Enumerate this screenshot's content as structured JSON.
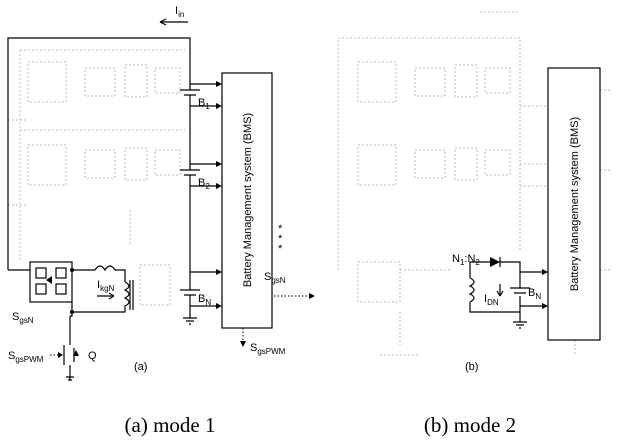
{
  "panel_a": {
    "current_in": {
      "main": "I",
      "sub": "in"
    },
    "batteries": [
      {
        "main": "B",
        "sub": "1"
      },
      {
        "main": "B",
        "sub": "2"
      },
      {
        "main": "B",
        "sub": "N"
      }
    ],
    "bms": "Battery Management system (BMS)",
    "gate_n_out": {
      "main": "S",
      "sub": "gsN"
    },
    "current_kg": {
      "main": "I",
      "sub": "kgN"
    },
    "gate_n_in": {
      "main": "S",
      "sub": "gsN"
    },
    "gate_pwm_in": {
      "main": "S",
      "sub": "gsPWM"
    },
    "switch": "Q",
    "gate_pwm_out": {
      "main": "S",
      "sub": "gsPWM"
    },
    "label": "(a)"
  },
  "panel_b": {
    "turns_ratio": {
      "main": "N",
      "sub1": "1",
      "mid": ":N",
      "sub2": "2"
    },
    "current_dn": {
      "main": "I",
      "sub": "DN"
    },
    "battery": {
      "main": "B",
      "sub": "N"
    },
    "bms": "Battery Management system (BMS)",
    "label": "(b)"
  },
  "captions": [
    "(a) mode 1",
    "(b) mode 2"
  ]
}
